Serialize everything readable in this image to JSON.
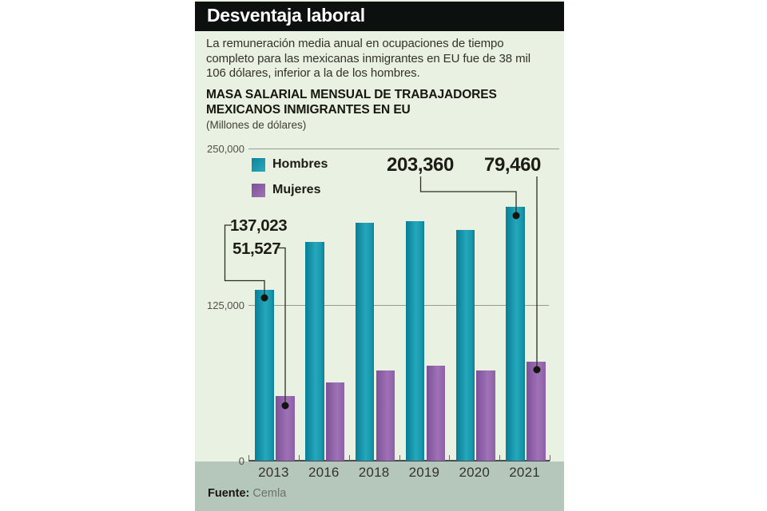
{
  "header": {
    "title": "Desventaja laboral"
  },
  "intro": {
    "lines": [
      "La remuneración media anual en ocupaciones de tiempo",
      "completo para las mexicanas inmigrantes en EU fue de 38 mil",
      "106 dólares, inferior a la de los hombres."
    ]
  },
  "chart_header": {
    "title_lines": [
      "MASA SALARIAL MENSUAL DE TRABAJADORES",
      "MEXICANOS INMIGRANTES EN EU"
    ],
    "units": "(Millones de dólares)"
  },
  "legend": [
    {
      "label": "Hombres",
      "color_key": "teal"
    },
    {
      "label": "Mujeres",
      "color_key": "purple"
    }
  ],
  "source": {
    "label": "Fuente:",
    "value": "Cemla"
  },
  "colors": {
    "teal": "#1a9cb2",
    "purple": "#9268ab",
    "panel_bg": "#e9f1e2",
    "header_bg": "#0c100e",
    "footer_band": "#b5c6bb",
    "gridline": "#9a9a94",
    "annotation_dot": "#15150f"
  },
  "chart_data": {
    "type": "bar",
    "categories": [
      "2013",
      "2016",
      "2018",
      "2019",
      "2020",
      "2021"
    ],
    "series": [
      {
        "name": "Hombres",
        "color_key": "teal",
        "values": [
          137023,
          175000,
          190500,
          192000,
          184500,
          203360
        ]
      },
      {
        "name": "Mujeres",
        "color_key": "purple",
        "values": [
          51527,
          62500,
          72000,
          76000,
          72000,
          79460
        ]
      }
    ],
    "ylim": [
      0,
      250000
    ],
    "yticks": [
      {
        "value": 0,
        "label": "0"
      },
      {
        "value": 125000,
        "label": "125,000"
      },
      {
        "value": 250000,
        "label": "250,000"
      }
    ],
    "grid": "horizontal",
    "legend_position": "top-left",
    "annotations": [
      {
        "series": "Hombres",
        "category": "2013",
        "label": "137,023"
      },
      {
        "series": "Mujeres",
        "category": "2013",
        "label": "51,527"
      },
      {
        "series": "Hombres",
        "category": "2021",
        "label": "203,360"
      },
      {
        "series": "Mujeres",
        "category": "2021",
        "label": "79,460"
      }
    ]
  }
}
